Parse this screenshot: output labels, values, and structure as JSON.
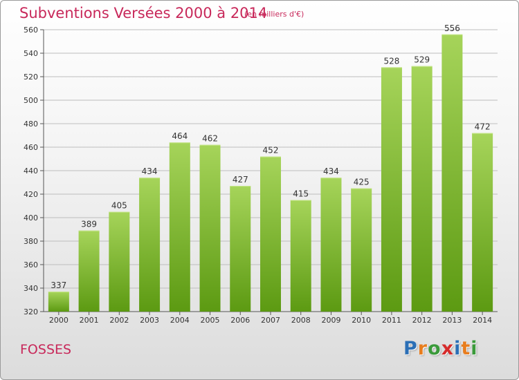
{
  "title": "Subventions Versées 2000 à 2014",
  "subtitle": "(en milliers d'€)",
  "commune": "FOSSES",
  "logo": {
    "text": "Proxiti",
    "colors": [
      "#2b6fb6",
      "#e87d1e",
      "#3a9a3a",
      "#d62b2b",
      "#2b6fb6",
      "#e87d1e",
      "#3a9a3a"
    ]
  },
  "colors": {
    "title": "#c8285a",
    "bar_top": "#a6d45a",
    "bar_bottom": "#5c9a12",
    "grid": "#bdbdbd"
  },
  "chart_data": {
    "type": "bar",
    "title": "Subventions Versées 2000 à 2014",
    "xlabel": "",
    "ylabel": "",
    "categories": [
      "2000",
      "2001",
      "2002",
      "2003",
      "2004",
      "2005",
      "2006",
      "2007",
      "2008",
      "2009",
      "2010",
      "2011",
      "2012",
      "2013",
      "2014"
    ],
    "values": [
      337,
      389,
      405,
      434,
      464,
      462,
      427,
      452,
      415,
      434,
      425,
      528,
      529,
      556,
      472
    ],
    "ylim": [
      320,
      560
    ],
    "yticks": [
      320,
      340,
      360,
      380,
      400,
      420,
      440,
      460,
      480,
      500,
      520,
      540,
      560
    ],
    "grid": true,
    "data_labels": true
  }
}
